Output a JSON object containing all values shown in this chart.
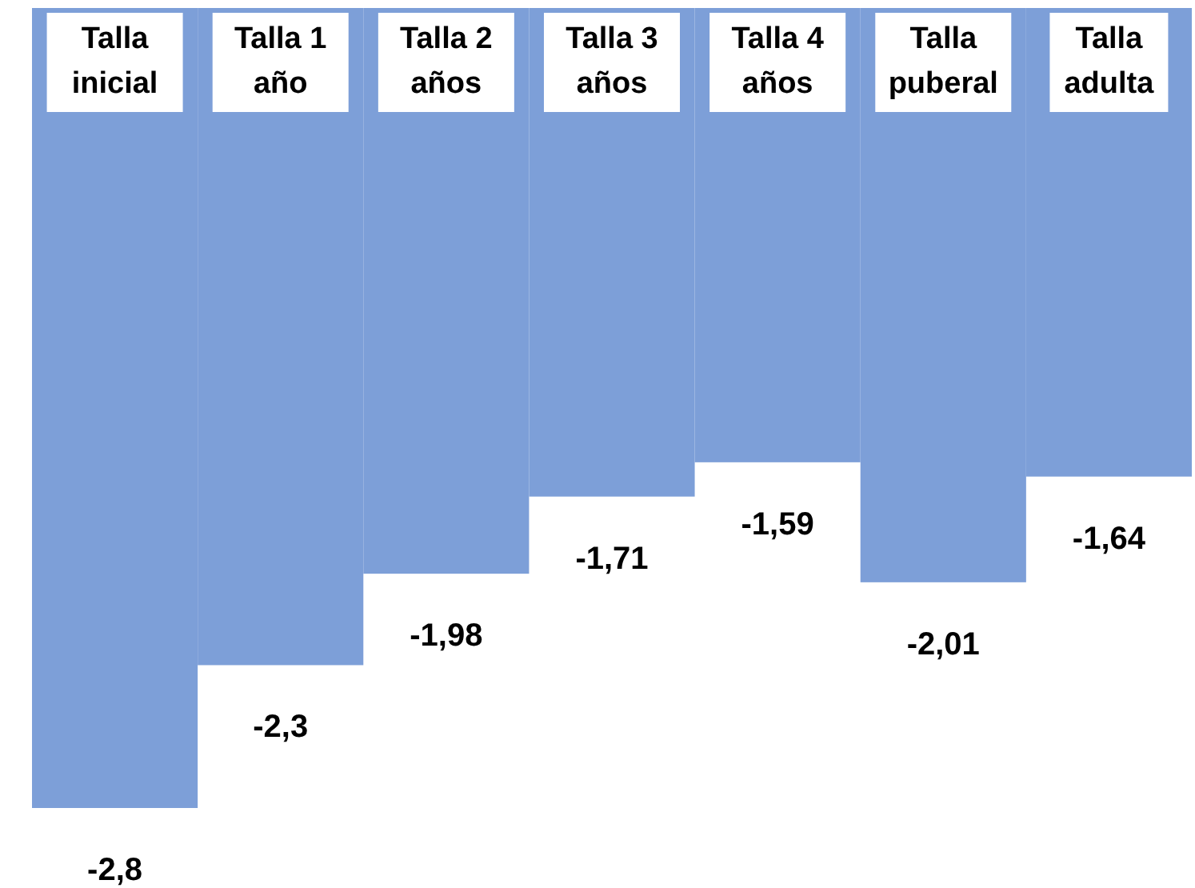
{
  "chart_data": {
    "type": "bar",
    "categories": [
      "Talla inicial",
      "Talla 1 año",
      "Talla 2 años",
      "Talla 3 años",
      "Talla 4 años",
      "Talla puberal",
      "Talla adulta"
    ],
    "values": [
      -2.8,
      -2.3,
      -1.98,
      -1.71,
      -1.59,
      -2.01,
      -1.64
    ],
    "value_labels": [
      "-2,8",
      "-2,3",
      "-1,98",
      "-1,71",
      "-1,59",
      "-2,01",
      "-1,64"
    ],
    "color": "#7d9fd8"
  }
}
